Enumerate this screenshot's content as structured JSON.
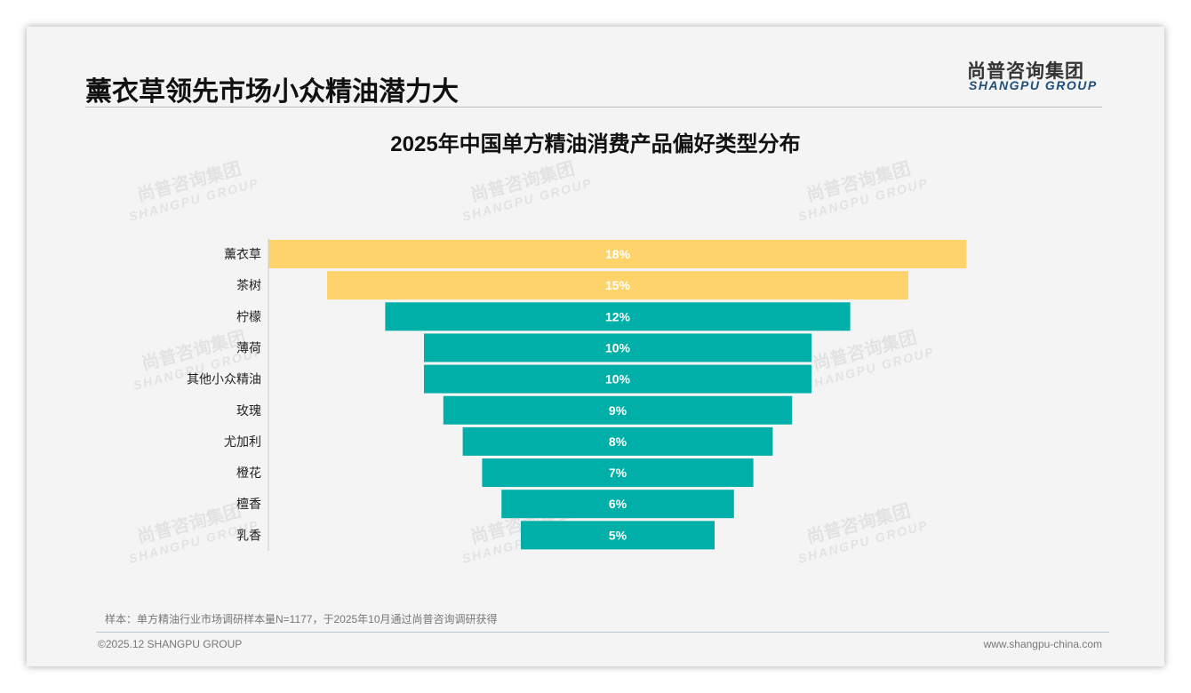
{
  "header": {
    "title": "薰衣草领先市场小众精油潜力大",
    "logo_cn": "尚普咨询集团",
    "logo_en": "SHANGPU GROUP"
  },
  "chart_data": {
    "type": "bar",
    "orientation": "horizontal-centered-funnel",
    "title": "2025年中国单方精油消费产品偏好类型分布",
    "categories": [
      "薰衣草",
      "茶树",
      "柠檬",
      "薄荷",
      "其他小众精油",
      "玫瑰",
      "尤加利",
      "橙花",
      "檀香",
      "乳香"
    ],
    "values": [
      18,
      15,
      12,
      10,
      10,
      9,
      8,
      7,
      6,
      5
    ],
    "labels": [
      "18%",
      "15%",
      "12%",
      "10%",
      "10%",
      "9%",
      "8%",
      "7%",
      "6%",
      "5%"
    ],
    "colors": [
      "#ffd36b",
      "#ffd36b",
      "#00b0a8",
      "#00b0a8",
      "#00b0a8",
      "#00b0a8",
      "#00b0a8",
      "#00b0a8",
      "#00b0a8",
      "#00b0a8"
    ],
    "unit": "%"
  },
  "footer": {
    "note": "样本：单方精油行业市场调研样本量N=1177，于2025年10月通过尚普咨询调研获得",
    "copyright": "©2025.12 SHANGPU GROUP",
    "url": "www.shangpu-china.com"
  }
}
